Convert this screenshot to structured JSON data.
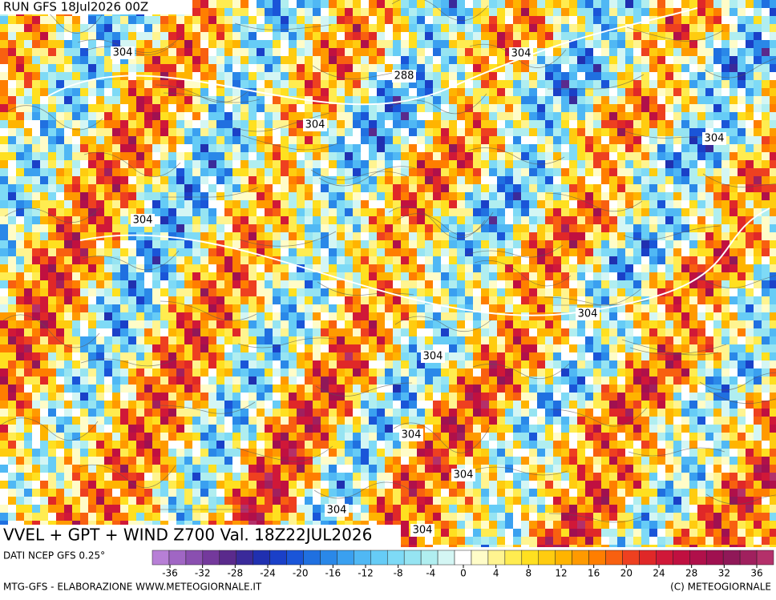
{
  "header": {
    "run": "RUN GFS 18Jul2026 00Z"
  },
  "map": {
    "title": "VVEL + GPT + WIND Z700 Val. 18Z22JUL2026",
    "contour_labels": [
      304,
      288,
      304,
      304,
      304,
      304,
      304,
      304,
      304,
      304,
      304,
      304
    ]
  },
  "colorbar": {
    "source": "DATI NCEP GFS 0.25°",
    "colors": [
      "#b77fd6",
      "#a066c4",
      "#8a4fb0",
      "#74399c",
      "#5a2a8c",
      "#3a2a9a",
      "#2030b0",
      "#1a40c8",
      "#1a55d8",
      "#2070e0",
      "#2a88e8",
      "#3aa0f0",
      "#50b8f4",
      "#66ccf6",
      "#7edaf6",
      "#96e4f2",
      "#b0eef0",
      "#d4f6f4",
      "#ffffff",
      "#fffcc8",
      "#fff490",
      "#ffec50",
      "#ffe020",
      "#ffcc10",
      "#ffb400",
      "#ff9a00",
      "#ff7e00",
      "#f86010",
      "#ee4020",
      "#e02828",
      "#d01838",
      "#c01040",
      "#b0104a",
      "#a01050",
      "#901858",
      "#a0205e",
      "#b4306a"
    ],
    "ticks": [
      -36,
      -32,
      -28,
      -24,
      -20,
      -16,
      -12,
      -8,
      -4,
      0,
      4,
      8,
      12,
      16,
      20,
      24,
      28,
      32,
      36
    ]
  },
  "footer": {
    "left": "MTG-GFS - ELABORAZIONE WWW.METEOGIORNALE.IT",
    "right": "(C) METEOGIORNALE"
  }
}
